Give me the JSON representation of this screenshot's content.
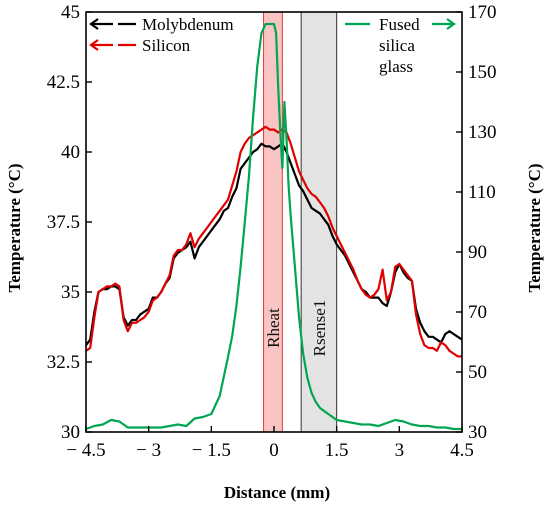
{
  "chart_data": {
    "type": "line",
    "xlabel": "Distance (mm)",
    "ylabel_left": "Temperature (°C)",
    "ylabel_right": "Temperature (°C)",
    "xlim": [
      -4.5,
      4.5
    ],
    "ylim_left": [
      30,
      45
    ],
    "ylim_right": [
      30,
      170
    ],
    "x_ticks": [
      -4.5,
      -3,
      -1.5,
      0,
      1.5,
      3,
      4.5
    ],
    "x_tick_labels": [
      "− 4.5",
      "− 3",
      "− 1.5",
      "0",
      "1.5",
      "3",
      "4.5"
    ],
    "y_ticks_left": [
      30,
      32.5,
      35,
      37.5,
      40,
      42.5,
      45
    ],
    "y_tick_labels_left": [
      "30",
      "32.5",
      "35",
      "37.5",
      "40",
      "42.5",
      "45"
    ],
    "y_ticks_right": [
      30,
      50,
      70,
      90,
      110,
      130,
      150,
      170
    ],
    "y_tick_labels_right": [
      "30",
      "50",
      "70",
      "90",
      "110",
      "130",
      "150",
      "170"
    ],
    "regions": [
      {
        "label": "Rheat",
        "x0": -0.25,
        "x1": 0.2,
        "fill": "#f9c4c4",
        "stroke": "#e53935"
      },
      {
        "label": "Rsense1",
        "x0": 0.65,
        "x1": 1.5,
        "fill": "#e3e3e3",
        "stroke": "#333333"
      }
    ],
    "legend": {
      "placement": "top",
      "left_entries": [
        {
          "name": "Molybdenum",
          "color": "#000000",
          "arrow": "left"
        },
        {
          "name": "Silicon",
          "color": "#e00000",
          "arrow": "left"
        }
      ],
      "right_entry": {
        "name_lines": [
          "Fused",
          "silica",
          "glass"
        ],
        "color": "#00a651",
        "arrow": "right"
      }
    },
    "series": [
      {
        "name": "Molybdenum",
        "color": "#000000",
        "axis": "left",
        "x": [
          -4.5,
          -4.4,
          -4.3,
          -4.2,
          -4.1,
          -4.0,
          -3.9,
          -3.8,
          -3.7,
          -3.6,
          -3.5,
          -3.4,
          -3.3,
          -3.2,
          -3.1,
          -3.0,
          -2.9,
          -2.8,
          -2.7,
          -2.6,
          -2.5,
          -2.4,
          -2.3,
          -2.2,
          -2.1,
          -2.0,
          -1.9,
          -1.8,
          -1.7,
          -1.6,
          -1.5,
          -1.4,
          -1.3,
          -1.2,
          -1.1,
          -1.0,
          -0.9,
          -0.8,
          -0.7,
          -0.6,
          -0.5,
          -0.4,
          -0.3,
          -0.2,
          -0.1,
          0.0,
          0.1,
          0.2,
          0.3,
          0.4,
          0.5,
          0.6,
          0.7,
          0.8,
          0.9,
          1.0,
          1.1,
          1.2,
          1.3,
          1.4,
          1.5,
          1.6,
          1.7,
          1.8,
          1.9,
          2.0,
          2.1,
          2.2,
          2.3,
          2.4,
          2.5,
          2.6,
          2.7,
          2.8,
          2.9,
          3.0,
          3.1,
          3.2,
          3.3,
          3.4,
          3.5,
          3.6,
          3.7,
          3.8,
          3.9,
          4.0,
          4.1,
          4.2,
          4.3,
          4.4,
          4.5
        ],
        "y": [
          33.1,
          33.3,
          34.3,
          35.0,
          35.1,
          35.1,
          35.2,
          35.2,
          35.1,
          34.1,
          33.8,
          34.0,
          34.0,
          34.2,
          34.3,
          34.4,
          34.8,
          34.8,
          35.0,
          35.3,
          35.5,
          36.2,
          36.4,
          36.5,
          36.6,
          36.8,
          36.2,
          36.6,
          36.8,
          37.0,
          37.2,
          37.4,
          37.6,
          37.9,
          38.0,
          38.4,
          38.7,
          39.4,
          39.6,
          39.8,
          40.0,
          40.1,
          40.3,
          40.2,
          40.2,
          40.1,
          40.2,
          40.3,
          40.0,
          39.6,
          39.2,
          38.8,
          38.6,
          38.3,
          38.0,
          37.9,
          37.8,
          37.6,
          37.4,
          37.0,
          36.7,
          36.5,
          36.3,
          36.0,
          35.7,
          35.4,
          35.1,
          35.0,
          34.8,
          34.8,
          34.8,
          34.6,
          34.5,
          35.0,
          35.7,
          36.0,
          35.7,
          35.5,
          35.4,
          34.4,
          33.9,
          33.6,
          33.4,
          33.4,
          33.3,
          33.2,
          33.5,
          33.6,
          33.5,
          33.4,
          33.3
        ]
      },
      {
        "name": "Silicon",
        "color": "#e00000",
        "axis": "left",
        "x": [
          -4.5,
          -4.4,
          -4.3,
          -4.2,
          -4.1,
          -4.0,
          -3.9,
          -3.8,
          -3.7,
          -3.6,
          -3.5,
          -3.4,
          -3.3,
          -3.2,
          -3.1,
          -3.0,
          -2.9,
          -2.8,
          -2.7,
          -2.6,
          -2.5,
          -2.4,
          -2.3,
          -2.2,
          -2.1,
          -2.0,
          -1.9,
          -1.8,
          -1.7,
          -1.6,
          -1.5,
          -1.4,
          -1.3,
          -1.2,
          -1.1,
          -1.0,
          -0.9,
          -0.8,
          -0.7,
          -0.6,
          -0.5,
          -0.4,
          -0.3,
          -0.2,
          -0.1,
          0.0,
          0.1,
          0.2,
          0.3,
          0.4,
          0.5,
          0.6,
          0.7,
          0.8,
          0.9,
          1.0,
          1.1,
          1.2,
          1.3,
          1.4,
          1.5,
          1.6,
          1.7,
          1.8,
          1.9,
          2.0,
          2.1,
          2.2,
          2.3,
          2.4,
          2.5,
          2.6,
          2.7,
          2.8,
          2.9,
          3.0,
          3.1,
          3.2,
          3.3,
          3.4,
          3.5,
          3.6,
          3.7,
          3.8,
          3.9,
          4.0,
          4.1,
          4.2,
          4.3,
          4.4,
          4.5
        ],
        "y": [
          32.9,
          33.0,
          34.1,
          35.0,
          35.1,
          35.2,
          35.2,
          35.3,
          35.2,
          34.0,
          33.6,
          33.9,
          33.9,
          34.0,
          34.1,
          34.3,
          34.7,
          34.8,
          35.0,
          35.3,
          35.6,
          36.3,
          36.5,
          36.5,
          36.7,
          37.1,
          36.6,
          36.9,
          37.1,
          37.3,
          37.5,
          37.7,
          37.9,
          38.1,
          38.3,
          38.8,
          39.3,
          40.0,
          40.3,
          40.5,
          40.6,
          40.7,
          40.8,
          40.9,
          40.8,
          40.8,
          40.7,
          40.8,
          40.7,
          40.3,
          39.8,
          39.3,
          39.0,
          38.7,
          38.5,
          38.4,
          38.2,
          38.0,
          37.7,
          37.3,
          37.0,
          36.7,
          36.4,
          36.1,
          35.8,
          35.4,
          35.1,
          34.9,
          34.8,
          34.9,
          35.1,
          35.8,
          34.7,
          35.0,
          35.9,
          36.0,
          35.8,
          35.6,
          35.4,
          34.2,
          33.5,
          33.1,
          33.0,
          33.0,
          32.9,
          33.2,
          33.1,
          32.9,
          32.8,
          32.7,
          32.7
        ]
      },
      {
        "name": "Fused silica glass",
        "color": "#00a651",
        "axis": "right",
        "x": [
          -4.5,
          -4.3,
          -4.1,
          -3.9,
          -3.7,
          -3.5,
          -3.3,
          -3.1,
          -2.9,
          -2.7,
          -2.5,
          -2.3,
          -2.1,
          -1.9,
          -1.7,
          -1.5,
          -1.3,
          -1.1,
          -1.0,
          -0.9,
          -0.8,
          -0.7,
          -0.6,
          -0.5,
          -0.4,
          -0.3,
          -0.2,
          -0.1,
          0.0,
          0.05,
          0.1,
          0.15,
          0.2,
          0.25,
          0.3,
          0.35,
          0.4,
          0.5,
          0.6,
          0.7,
          0.8,
          0.9,
          1.0,
          1.1,
          1.2,
          1.3,
          1.4,
          1.5,
          1.7,
          1.9,
          2.1,
          2.3,
          2.5,
          2.7,
          2.9,
          3.1,
          3.3,
          3.5,
          3.7,
          3.9,
          4.1,
          4.3,
          4.5
        ],
        "y": [
          31.0,
          32.0,
          32.5,
          34.0,
          33.5,
          31.5,
          31.5,
          31.5,
          31.5,
          31.5,
          32.0,
          32.5,
          32.0,
          34.5,
          35.0,
          36.0,
          42.0,
          55.0,
          62.0,
          72.0,
          85.0,
          100.0,
          115.0,
          135.0,
          152.0,
          163.0,
          166.0,
          166.0,
          166.0,
          163.0,
          145.0,
          130.0,
          118.0,
          140.0,
          128.0,
          112.0,
          102.0,
          85.0,
          68.0,
          56.0,
          48.0,
          43.0,
          40.0,
          38.0,
          37.0,
          36.0,
          35.0,
          34.0,
          33.5,
          33.0,
          32.5,
          32.5,
          32.0,
          33.0,
          34.0,
          33.5,
          32.5,
          32.0,
          32.0,
          31.5,
          31.5,
          31.0,
          31.0
        ]
      }
    ]
  }
}
